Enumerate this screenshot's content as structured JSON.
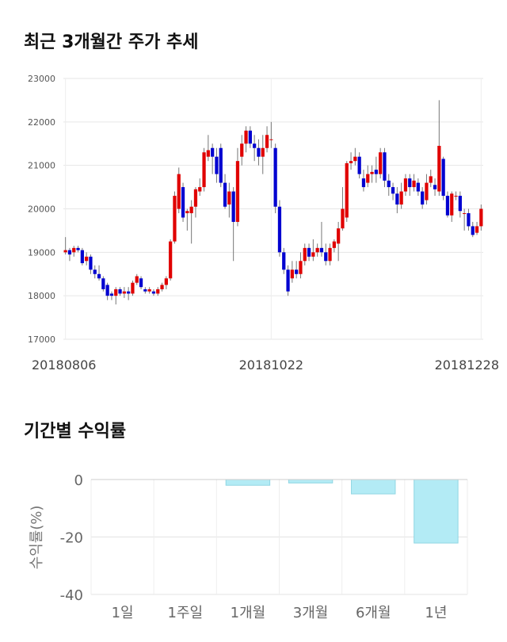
{
  "chart_data": [
    {
      "type": "candlestick",
      "title": "최근 3개월간 주가 추세",
      "categories": [
        "20180806",
        null,
        null,
        null,
        null,
        null,
        null,
        null,
        null,
        null,
        null,
        null,
        null,
        null,
        null,
        null,
        null,
        null,
        null,
        null,
        null,
        null,
        null,
        null,
        null,
        null,
        null,
        null,
        null,
        null,
        null,
        null,
        null,
        null,
        null,
        null,
        null,
        null,
        null,
        null,
        null,
        null,
        null,
        null,
        null,
        null,
        null,
        null,
        null,
        "20181022",
        null,
        null,
        null,
        null,
        null,
        null,
        null,
        null,
        null,
        null,
        null,
        null,
        null,
        null,
        null,
        null,
        null,
        null,
        null,
        null,
        null,
        null,
        null,
        null,
        null,
        null,
        null,
        null,
        null,
        null,
        null,
        null,
        null,
        null,
        null,
        null,
        null,
        null,
        null,
        null,
        null,
        null,
        null,
        null,
        null,
        null,
        null,
        null,
        null,
        "20181228"
      ],
      "open": [
        19000,
        19050,
        19000,
        19100,
        19050,
        18800,
        18900,
        18600,
        18500,
        18400,
        18250,
        18050,
        18000,
        18150,
        18050,
        18100,
        18050,
        18300,
        18400,
        18150,
        18100,
        18100,
        18050,
        18150,
        18250,
        18400,
        19250,
        20000,
        20500,
        19900,
        19900,
        20050,
        20400,
        20500,
        21200,
        21400,
        21200,
        21400,
        20600,
        20100,
        20400,
        19700,
        21200,
        21500,
        21800,
        21500,
        21400,
        21200,
        21400,
        21600,
        21400,
        20050,
        19000,
        18600,
        18400,
        18600,
        18500,
        18800,
        19100,
        18900,
        19000,
        19100,
        19000,
        18800,
        19100,
        19200,
        19550,
        19800,
        21050,
        21100,
        21200,
        20700,
        20600,
        20800,
        20900,
        20800,
        21300,
        20650,
        20500,
        20350,
        20100,
        20400,
        20700,
        20500,
        20600,
        20400,
        20200,
        20600,
        20550,
        20400,
        21150,
        20300,
        19850,
        20300,
        20300,
        19900,
        19900,
        19600,
        19450,
        19600
      ],
      "high": [
        19350,
        19100,
        19150,
        19150,
        19100,
        19000,
        18950,
        18700,
        18700,
        18450,
        18300,
        18100,
        18200,
        18200,
        18200,
        18200,
        18350,
        18500,
        18450,
        18200,
        18200,
        18150,
        18200,
        18300,
        18450,
        19300,
        20400,
        20950,
        20600,
        20000,
        20200,
        20500,
        20700,
        21400,
        21700,
        21500,
        21400,
        21500,
        20800,
        20600,
        20500,
        21400,
        21700,
        21900,
        21900,
        21700,
        21600,
        21700,
        21900,
        22000,
        21500,
        20200,
        19100,
        18700,
        18800,
        18800,
        19000,
        19200,
        19200,
        19300,
        19200,
        19700,
        19200,
        19200,
        19300,
        19700,
        20500,
        21100,
        21300,
        21400,
        21300,
        20900,
        21000,
        21000,
        21200,
        21400,
        21400,
        20800,
        20600,
        20500,
        20600,
        20800,
        20800,
        20800,
        20700,
        20500,
        20800,
        20900,
        20700,
        22500,
        21200,
        20400,
        20400,
        20400,
        20400,
        20000,
        20000,
        19700,
        19700,
        20100
      ],
      "low": [
        18950,
        18800,
        18900,
        19000,
        18700,
        18700,
        18500,
        18400,
        18350,
        18100,
        17900,
        17900,
        17800,
        18000,
        17950,
        17900,
        18000,
        18250,
        18150,
        18050,
        18050,
        18000,
        18000,
        18100,
        18150,
        18350,
        19200,
        19900,
        19700,
        19500,
        19200,
        19800,
        20300,
        20400,
        21100,
        20800,
        20600,
        20500,
        20000,
        19800,
        18800,
        19600,
        21000,
        21300,
        21400,
        21100,
        21000,
        20800,
        21300,
        21400,
        19900,
        18900,
        18500,
        18000,
        18300,
        18400,
        18400,
        18700,
        18800,
        18800,
        18900,
        18900,
        18700,
        18700,
        19000,
        18800,
        19500,
        19700,
        20900,
        21000,
        20700,
        20400,
        20500,
        20600,
        20600,
        20700,
        20500,
        20300,
        20200,
        19900,
        20000,
        20300,
        20300,
        20400,
        20300,
        20000,
        20100,
        20500,
        20300,
        20300,
        20200,
        19800,
        19700,
        20200,
        19800,
        19500,
        19500,
        19350,
        19400,
        19500
      ],
      "close": [
        19050,
        18950,
        19100,
        19050,
        18750,
        18900,
        18600,
        18500,
        18400,
        18150,
        18000,
        18000,
        18150,
        18050,
        18100,
        18050,
        18300,
        18450,
        18200,
        18100,
        18150,
        18050,
        18150,
        18250,
        18400,
        19250,
        20300,
        20800,
        19800,
        19950,
        20050,
        20450,
        20500,
        21300,
        21350,
        21200,
        20800,
        20600,
        20050,
        20400,
        19700,
        21100,
        21500,
        21800,
        21500,
        21400,
        21200,
        21400,
        21700,
        21600,
        20050,
        19000,
        18600,
        18100,
        18600,
        18500,
        18800,
        19100,
        18900,
        19000,
        19100,
        19000,
        18800,
        19100,
        19250,
        19550,
        20000,
        21050,
        21100,
        21200,
        20800,
        20500,
        20800,
        20850,
        20800,
        21300,
        20650,
        20500,
        20350,
        20100,
        20400,
        20700,
        20500,
        20650,
        20400,
        20100,
        20600,
        20750,
        20450,
        21450,
        20300,
        19850,
        20350,
        20300,
        19950,
        19900,
        19600,
        19400,
        19600,
        20000
      ],
      "up_color": "#e00000",
      "down_color": "#0000d0",
      "ylim": [
        17000,
        23000
      ],
      "yticks": [
        17000,
        18000,
        19000,
        20000,
        21000,
        22000,
        23000
      ],
      "grid": true
    },
    {
      "type": "bar",
      "title": "기간별 수익률",
      "ylabel": "수익률(%)",
      "categories": [
        "1일",
        "1주일",
        "1개월",
        "3개월",
        "6개월",
        "1년"
      ],
      "values": [
        0,
        0,
        -2.0,
        -1.2,
        -5.0,
        -22.1
      ],
      "color": "#b3ebf5",
      "edge_color": "#8fd6e3",
      "ylim": [
        -40,
        0
      ],
      "yticks": [
        0,
        -20,
        -40
      ],
      "grid": true
    }
  ]
}
